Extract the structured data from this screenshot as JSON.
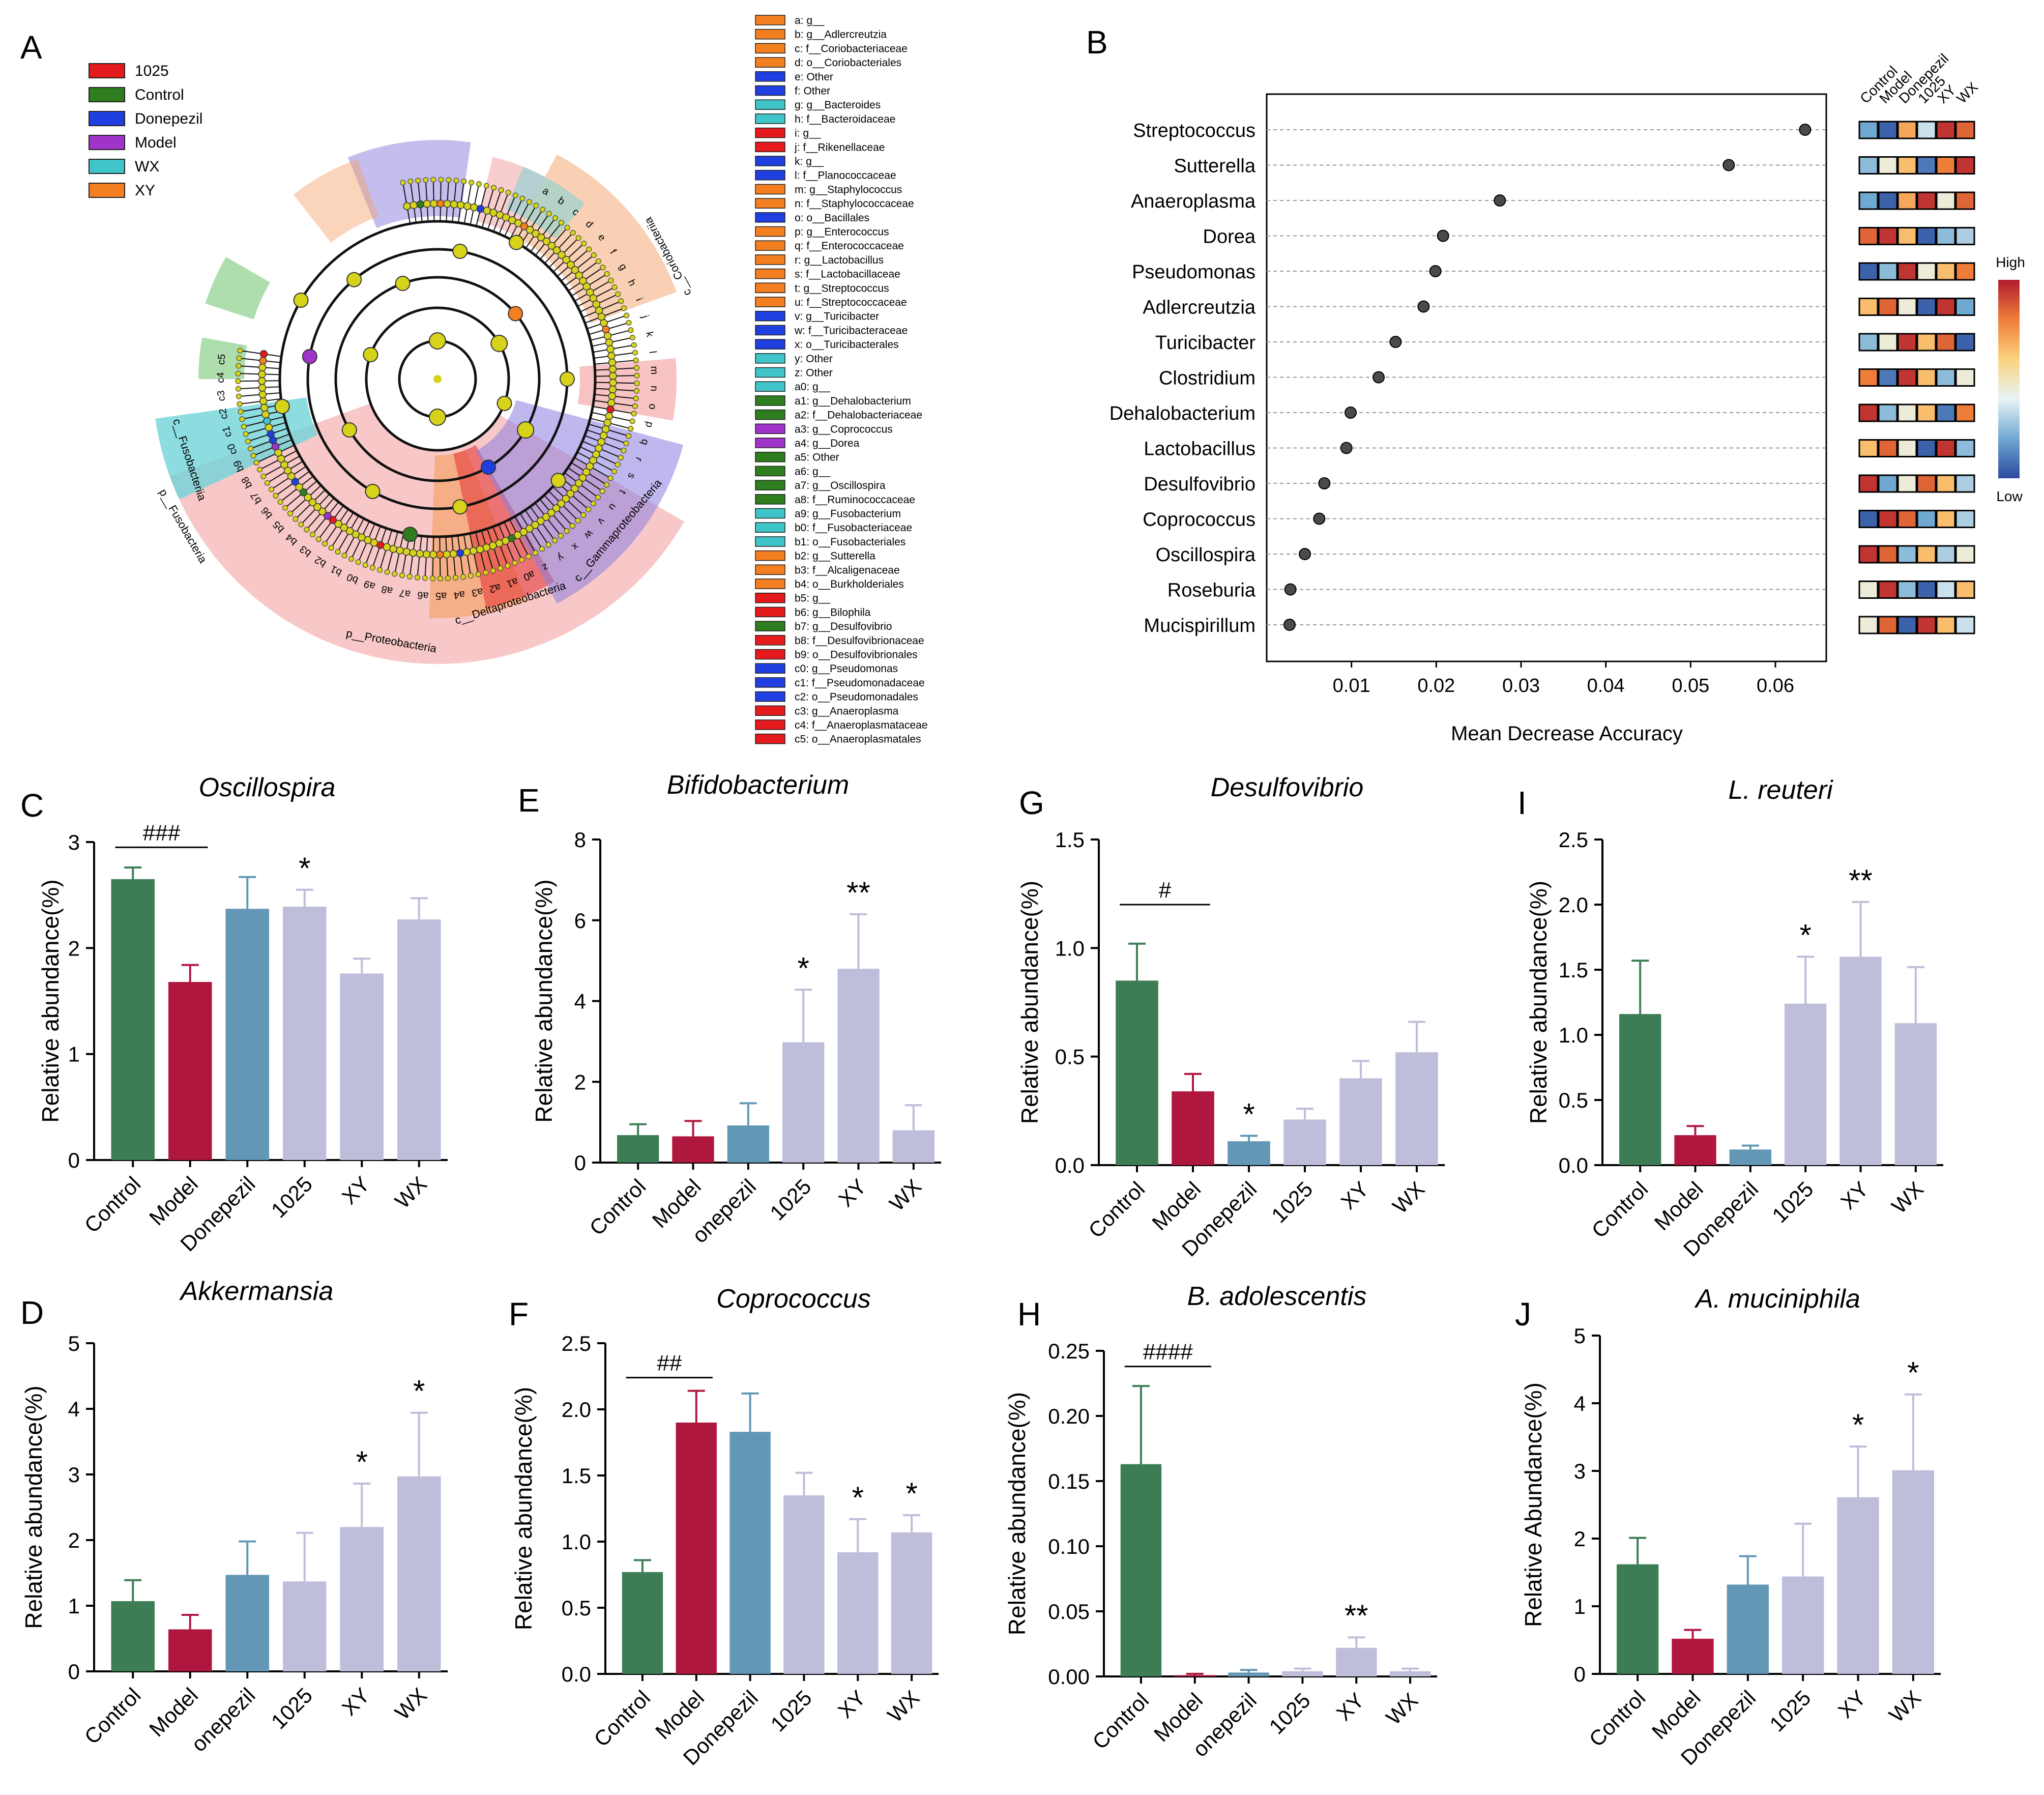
{
  "panels": {
    "A": "A",
    "B": "B",
    "C": "C",
    "D": "D",
    "E": "E",
    "F": "F",
    "G": "G",
    "H": "H",
    "I": "I",
    "J": "J"
  },
  "cladogram": {
    "groups": [
      {
        "name": "1025",
        "color": "#e41a1c"
      },
      {
        "name": "Control",
        "color": "#2e7d1e"
      },
      {
        "name": "Donepezil",
        "color": "#1f3fe0"
      },
      {
        "name": "Model",
        "color": "#a033c9"
      },
      {
        "name": "WX",
        "color": "#3ec4c9"
      },
      {
        "name": "XY",
        "color": "#f47f20"
      }
    ],
    "clade_labels": [
      "c__Fusobacteriia",
      "p__Fusobacteria",
      "p__Proteobacteria",
      "c__Deltaproteobacteria",
      "c__Gammaproteobacteria",
      "c__Coriobacteriia"
    ],
    "node_letters": [
      "a",
      "b",
      "c",
      "d",
      "e",
      "f",
      "g",
      "h",
      "i",
      "j",
      "k",
      "l",
      "m",
      "n",
      "o",
      "p",
      "q",
      "r",
      "s",
      "t",
      "u",
      "v",
      "w",
      "x",
      "y",
      "z",
      "a0",
      "a1",
      "a2",
      "a3",
      "a4",
      "a5",
      "a6",
      "a7",
      "a8",
      "a9",
      "b0",
      "b1",
      "b2",
      "b3",
      "b4",
      "b5",
      "b6",
      "b7",
      "b8",
      "b9",
      "c0",
      "c1",
      "c2",
      "c3",
      "c4",
      "c5"
    ],
    "legend": [
      {
        "label": "a: g__",
        "color": "#f47f20"
      },
      {
        "label": "b: g__Adlercreutzia",
        "color": "#f47f20"
      },
      {
        "label": "c: f__Coriobacteriaceae",
        "color": "#f47f20"
      },
      {
        "label": "d: o__Coriobacteriales",
        "color": "#f47f20"
      },
      {
        "label": "e: Other",
        "color": "#1f3fe0"
      },
      {
        "label": "f: Other",
        "color": "#1f3fe0"
      },
      {
        "label": "g: g__Bacteroides",
        "color": "#3ec4c9"
      },
      {
        "label": "h: f__Bacteroidaceae",
        "color": "#3ec4c9"
      },
      {
        "label": "i: g__",
        "color": "#e41a1c"
      },
      {
        "label": "j: f__Rikenellaceae",
        "color": "#e41a1c"
      },
      {
        "label": "k: g__",
        "color": "#1f3fe0"
      },
      {
        "label": "l: f__Planococcaceae",
        "color": "#1f3fe0"
      },
      {
        "label": "m: g__Staphylococcus",
        "color": "#f47f20"
      },
      {
        "label": "n: f__Staphylococcaceae",
        "color": "#f47f20"
      },
      {
        "label": "o: o__Bacillales",
        "color": "#1f3fe0"
      },
      {
        "label": "p: g__Enterococcus",
        "color": "#f47f20"
      },
      {
        "label": "q: f__Enterococcaceae",
        "color": "#f47f20"
      },
      {
        "label": "r: g__Lactobacillus",
        "color": "#f47f20"
      },
      {
        "label": "s: f__Lactobacillaceae",
        "color": "#f47f20"
      },
      {
        "label": "t: g__Streptococcus",
        "color": "#f47f20"
      },
      {
        "label": "u: f__Streptococcaceae",
        "color": "#f47f20"
      },
      {
        "label": "v: g__Turicibacter",
        "color": "#1f3fe0"
      },
      {
        "label": "w: f__Turicibacteraceae",
        "color": "#1f3fe0"
      },
      {
        "label": "x: o__Turicibacterales",
        "color": "#1f3fe0"
      },
      {
        "label": "y: Other",
        "color": "#3ec4c9"
      },
      {
        "label": "z: Other",
        "color": "#3ec4c9"
      },
      {
        "label": "a0: g__",
        "color": "#3ec4c9"
      },
      {
        "label": "a1: g__Dehalobacterium",
        "color": "#2e7d1e"
      },
      {
        "label": "a2: f__Dehalobacteriaceae",
        "color": "#2e7d1e"
      },
      {
        "label": "a3: g__Coprococcus",
        "color": "#a033c9"
      },
      {
        "label": "a4: g__Dorea",
        "color": "#a033c9"
      },
      {
        "label": "a5: Other",
        "color": "#2e7d1e"
      },
      {
        "label": "a6: g__",
        "color": "#2e7d1e"
      },
      {
        "label": "a7: g__Oscillospira",
        "color": "#2e7d1e"
      },
      {
        "label": "a8: f__Ruminococcaceae",
        "color": "#2e7d1e"
      },
      {
        "label": "a9: g__Fusobacterium",
        "color": "#3ec4c9"
      },
      {
        "label": "b0: f__Fusobacteriaceae",
        "color": "#3ec4c9"
      },
      {
        "label": "b1: o__Fusobacteriales",
        "color": "#3ec4c9"
      },
      {
        "label": "b2: g__Sutterella",
        "color": "#f47f20"
      },
      {
        "label": "b3: f__Alcaligenaceae",
        "color": "#f47f20"
      },
      {
        "label": "b4: o__Burkholderiales",
        "color": "#f47f20"
      },
      {
        "label": "b5: g__",
        "color": "#e41a1c"
      },
      {
        "label": "b6: g__Bilophila",
        "color": "#e41a1c"
      },
      {
        "label": "b7: g__Desulfovibrio",
        "color": "#2e7d1e"
      },
      {
        "label": "b8: f__Desulfovibrionaceae",
        "color": "#e41a1c"
      },
      {
        "label": "b9: o__Desulfovibrionales",
        "color": "#e41a1c"
      },
      {
        "label": "c0: g__Pseudomonas",
        "color": "#1f3fe0"
      },
      {
        "label": "c1: f__Pseudomonadaceae",
        "color": "#1f3fe0"
      },
      {
        "label": "c2: o__Pseudomonadales",
        "color": "#1f3fe0"
      },
      {
        "label": "c3: g__Anaeroplasma",
        "color": "#e41a1c"
      },
      {
        "label": "c4: f__Anaeroplasmataceae",
        "color": "#e41a1c"
      },
      {
        "label": "c5: o__Anaeroplasmatales",
        "color": "#e41a1c"
      }
    ]
  },
  "colors": {
    "Control": "#3d7d55",
    "Model": "#b0173f",
    "Donepezil": "#6297b5",
    "Treatment": "#bebedb",
    "dot": "#4a4a4a",
    "heat_low": "#2c4aa0",
    "heat_high": "#b01c2e"
  },
  "chart_data": [
    {
      "id": "B",
      "type": "scatter",
      "title": "",
      "xlabel": "Mean Decrease Accuracy",
      "xlim": [
        0.0,
        0.066
      ],
      "xticks": [
        0.01,
        0.02,
        0.03,
        0.04,
        0.05,
        0.06
      ],
      "xtick_labels": [
        "0.01",
        "0.02",
        "0.03",
        "0.04",
        "0.05",
        "0.06"
      ],
      "categories": [
        "Streptococcus",
        "Sutterella",
        "Anaeroplasma",
        "Dorea",
        "Pseudomonas",
        "Adlercreutzia",
        "Turicibacter",
        "Clostridium",
        "Dehalobacterium",
        "Lactobacillus",
        "Desulfovibrio",
        "Coprococcus",
        "Oscillospira",
        "Roseburia",
        "Mucispirillum"
      ],
      "values": [
        0.0635,
        0.0545,
        0.0275,
        0.0208,
        0.0199,
        0.0185,
        0.0152,
        0.0132,
        0.0099,
        0.0094,
        0.0068,
        0.0062,
        0.0045,
        0.0028,
        0.0027
      ],
      "heatmap": {
        "columns": [
          "Control",
          "Model",
          "Donepezil",
          "1025",
          "XY",
          "WX"
        ],
        "scale_high": "High",
        "scale_low": "Low",
        "rows": [
          [
            0.2,
            0.05,
            0.7,
            0.35,
            0.95,
            0.85
          ],
          [
            0.25,
            0.45,
            0.65,
            0.1,
            0.8,
            0.95
          ],
          [
            0.2,
            0.05,
            0.7,
            0.95,
            0.45,
            0.85
          ],
          [
            0.85,
            0.95,
            0.65,
            0.05,
            0.25,
            0.3
          ],
          [
            0.05,
            0.25,
            0.95,
            0.45,
            0.65,
            0.8
          ],
          [
            0.65,
            0.85,
            0.45,
            0.05,
            0.95,
            0.2
          ],
          [
            0.25,
            0.45,
            0.95,
            0.65,
            0.85,
            0.05
          ],
          [
            0.8,
            0.1,
            0.95,
            0.65,
            0.25,
            0.45
          ],
          [
            0.95,
            0.25,
            0.45,
            0.65,
            0.1,
            0.8
          ],
          [
            0.65,
            0.85,
            0.45,
            0.05,
            0.95,
            0.25
          ],
          [
            0.95,
            0.2,
            0.45,
            0.85,
            0.65,
            0.3
          ],
          [
            0.05,
            0.95,
            0.85,
            0.2,
            0.65,
            0.3
          ],
          [
            0.95,
            0.85,
            0.25,
            0.65,
            0.3,
            0.45
          ],
          [
            0.45,
            0.95,
            0.25,
            0.05,
            0.35,
            0.65
          ],
          [
            0.45,
            0.85,
            0.05,
            0.95,
            0.65,
            0.35
          ]
        ]
      }
    },
    {
      "id": "C",
      "type": "bar",
      "title": "Oscillospira",
      "ylabel": "Relative abundance(%)",
      "ylim": [
        0,
        3
      ],
      "yticks": [
        0,
        1,
        2,
        3
      ],
      "ytick_labels": [
        "0",
        "1",
        "2",
        "3"
      ],
      "categories": [
        "Control",
        "Model",
        "Donepezil",
        "1025",
        "XY",
        "WX"
      ],
      "values": [
        2.65,
        1.68,
        2.37,
        2.39,
        1.76,
        2.27
      ],
      "errors": [
        0.11,
        0.16,
        0.3,
        0.16,
        0.14,
        0.2
      ],
      "bar_colors": [
        "Control",
        "Model",
        "Donepezil",
        "Treatment",
        "Treatment",
        "Treatment"
      ],
      "stars": [
        "",
        "",
        "",
        "*",
        "",
        ""
      ],
      "bracket": {
        "from": 0,
        "to": 1,
        "label": "###",
        "y": 2.95
      }
    },
    {
      "id": "D",
      "type": "bar",
      "title": "Akkermansia",
      "ylabel": "Relative abundance(%)",
      "ylim": [
        0,
        5
      ],
      "yticks": [
        0,
        1,
        2,
        3,
        4,
        5
      ],
      "ytick_labels": [
        "0",
        "1",
        "2",
        "3",
        "4",
        "5"
      ],
      "categories": [
        "Control",
        "Model",
        "onepezil",
        "1025",
        "XY",
        "WX"
      ],
      "values": [
        1.07,
        0.64,
        1.47,
        1.37,
        2.2,
        2.97
      ],
      "errors": [
        0.32,
        0.22,
        0.51,
        0.74,
        0.66,
        0.97
      ],
      "bar_colors": [
        "Control",
        "Model",
        "Donepezil",
        "Treatment",
        "Treatment",
        "Treatment"
      ],
      "stars": [
        "",
        "",
        "",
        "",
        "*",
        "*"
      ],
      "bracket": null
    },
    {
      "id": "E",
      "type": "bar",
      "title": "Bifidobacterium",
      "ylabel": "Relative abundance(%)",
      "ylim": [
        0,
        8
      ],
      "yticks": [
        0,
        2,
        4,
        6,
        8
      ],
      "ytick_labels": [
        "0",
        "2",
        "4",
        "6",
        "8"
      ],
      "categories": [
        "Control",
        "Model",
        "onepezil",
        "1025",
        "XY",
        "WX"
      ],
      "values": [
        0.68,
        0.65,
        0.92,
        2.98,
        4.8,
        0.8
      ],
      "errors": [
        0.27,
        0.38,
        0.55,
        1.3,
        1.35,
        0.62
      ],
      "bar_colors": [
        "Control",
        "Model",
        "Donepezil",
        "Treatment",
        "Treatment",
        "Treatment"
      ],
      "stars": [
        "",
        "",
        "",
        "*",
        "**",
        ""
      ],
      "bracket": null
    },
    {
      "id": "F",
      "type": "bar",
      "title": "Coprococcus",
      "ylabel": "Relative abundance(%)",
      "ylim": [
        0,
        2.5
      ],
      "yticks": [
        0,
        0.5,
        1.0,
        1.5,
        2.0,
        2.5
      ],
      "ytick_labels": [
        "0.0",
        "0.5",
        "1.0",
        "1.5",
        "2.0",
        "2.5"
      ],
      "categories": [
        "Control",
        "Model",
        "Donepezil",
        "1025",
        "XY",
        "WX"
      ],
      "values": [
        0.77,
        1.9,
        1.83,
        1.35,
        0.92,
        1.07
      ],
      "errors": [
        0.09,
        0.24,
        0.29,
        0.17,
        0.25,
        0.13
      ],
      "bar_colors": [
        "Control",
        "Model",
        "Donepezil",
        "Treatment",
        "Treatment",
        "Treatment"
      ],
      "stars": [
        "",
        "",
        "",
        "",
        "*",
        "*"
      ],
      "bracket": {
        "from": 0,
        "to": 1,
        "label": "##",
        "y": 2.24
      }
    },
    {
      "id": "G",
      "type": "bar",
      "title": "Desulfovibrio",
      "ylabel": "Relative abundance(%)",
      "ylim": [
        0,
        1.5
      ],
      "yticks": [
        0,
        0.5,
        1.0,
        1.5
      ],
      "ytick_labels": [
        "0.0",
        "0.5",
        "1.0",
        "1.5"
      ],
      "categories": [
        "Control",
        "Model",
        "Donepezil",
        "1025",
        "XY",
        "WX"
      ],
      "values": [
        0.85,
        0.34,
        0.11,
        0.21,
        0.4,
        0.52
      ],
      "errors": [
        0.17,
        0.08,
        0.025,
        0.05,
        0.08,
        0.14
      ],
      "bar_colors": [
        "Control",
        "Model",
        "Donepezil",
        "Treatment",
        "Treatment",
        "Treatment"
      ],
      "stars": [
        "",
        "",
        "*",
        "",
        "",
        ""
      ],
      "bracket": {
        "from": 0,
        "to": 1,
        "label": "#",
        "y": 1.2
      }
    },
    {
      "id": "H",
      "type": "bar",
      "title": "B. adolescentis",
      "ylabel": "Relative abundance(%)",
      "ylim": [
        0,
        0.25
      ],
      "yticks": [
        0,
        0.05,
        0.1,
        0.15,
        0.2,
        0.25
      ],
      "ytick_labels": [
        "0.00",
        "0.05",
        "0.10",
        "0.15",
        "0.20",
        "0.25"
      ],
      "categories": [
        "Control",
        "Model",
        "onepezil",
        "1025",
        "XY",
        "WX"
      ],
      "values": [
        0.163,
        0.001,
        0.003,
        0.004,
        0.022,
        0.004
      ],
      "errors": [
        0.06,
        0.001,
        0.002,
        0.002,
        0.008,
        0.002
      ],
      "bar_colors": [
        "Control",
        "Model",
        "Donepezil",
        "Treatment",
        "Treatment",
        "Treatment"
      ],
      "stars": [
        "",
        "",
        "",
        "",
        "**",
        ""
      ],
      "bracket": {
        "from": 0,
        "to": 1,
        "label": "####",
        "y": 0.238
      }
    },
    {
      "id": "I",
      "type": "bar",
      "title": "L. reuteri",
      "ylabel": "Relative abundance(%)",
      "ylim": [
        0,
        2.5
      ],
      "yticks": [
        0,
        0.5,
        1.0,
        1.5,
        2.0,
        2.5
      ],
      "ytick_labels": [
        "0.0",
        "0.5",
        "1.0",
        "1.5",
        "2.0",
        "2.5"
      ],
      "categories": [
        "Control",
        "Model",
        "Donepezil",
        "1025",
        "XY",
        "WX"
      ],
      "values": [
        1.16,
        0.23,
        0.12,
        1.24,
        1.6,
        1.09
      ],
      "errors": [
        0.41,
        0.07,
        0.03,
        0.36,
        0.42,
        0.43
      ],
      "bar_colors": [
        "Control",
        "Model",
        "Donepezil",
        "Treatment",
        "Treatment",
        "Treatment"
      ],
      "stars": [
        "",
        "",
        "",
        "*",
        "**",
        ""
      ],
      "bracket": null
    },
    {
      "id": "J",
      "type": "bar",
      "title": "A. muciniphila",
      "ylabel": "Relative Abundance(%)",
      "ylim": [
        0,
        5
      ],
      "yticks": [
        0,
        1,
        2,
        3,
        4,
        5
      ],
      "ytick_labels": [
        "0",
        "1",
        "2",
        "3",
        "4",
        "5"
      ],
      "categories": [
        "Control",
        "Model",
        "Donepezil",
        "1025",
        "XY",
        "WX"
      ],
      "values": [
        1.62,
        0.52,
        1.32,
        1.44,
        2.61,
        3.01
      ],
      "errors": [
        0.39,
        0.13,
        0.42,
        0.78,
        0.75,
        1.12
      ],
      "bar_colors": [
        "Control",
        "Model",
        "Donepezil",
        "Treatment",
        "Treatment",
        "Treatment"
      ],
      "stars": [
        "",
        "",
        "",
        "",
        "*",
        "*"
      ],
      "bracket": null
    }
  ]
}
